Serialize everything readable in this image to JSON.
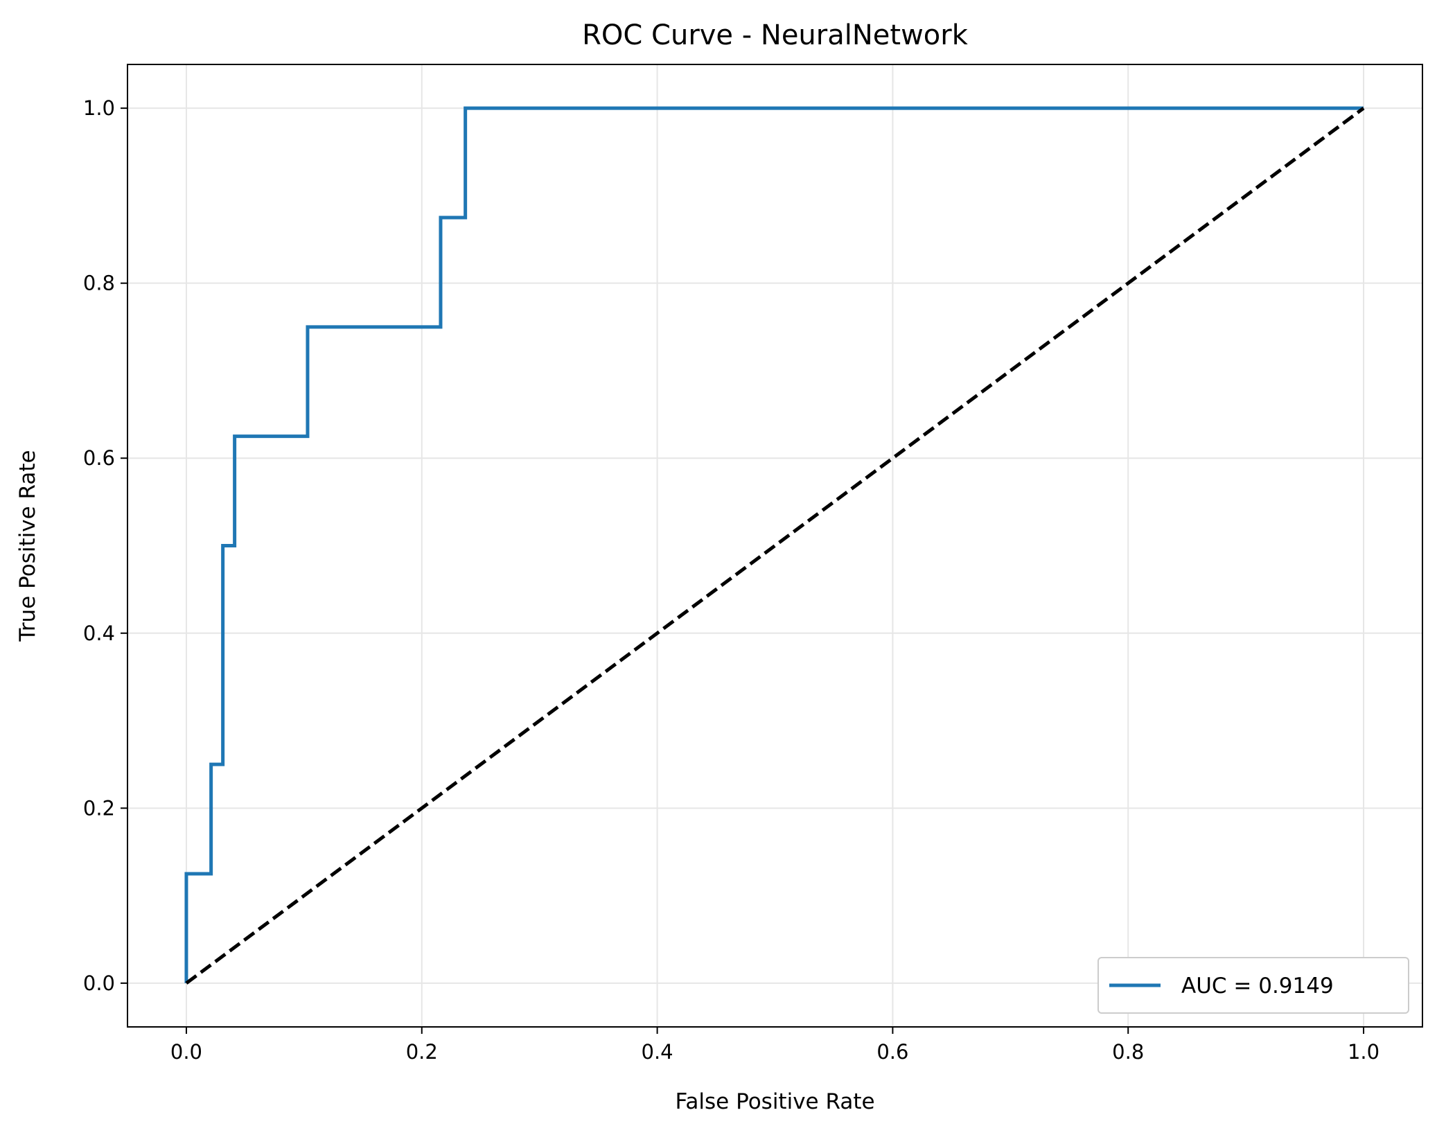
{
  "chart_data": {
    "type": "line",
    "title": "ROC Curve - NeuralNetwork",
    "xlabel": "False Positive Rate",
    "ylabel": "True Positive Rate",
    "xlim": [
      -0.05,
      1.05
    ],
    "ylim": [
      -0.05,
      1.05
    ],
    "grid": true,
    "legend_position": "lower right",
    "x_ticks": [
      "0.0",
      "0.2",
      "0.4",
      "0.6",
      "0.8",
      "1.0"
    ],
    "y_ticks": [
      "0.0",
      "0.2",
      "0.4",
      "0.6",
      "0.8",
      "1.0"
    ],
    "x_tick_values": [
      0.0,
      0.2,
      0.4,
      0.6,
      0.8,
      1.0
    ],
    "y_tick_values": [
      0.0,
      0.2,
      0.4,
      0.6,
      0.8,
      1.0
    ],
    "series": [
      {
        "name": "AUC = 0.9149",
        "style": "solid",
        "color": "#1f77b4",
        "x": [
          0.0,
          0.0,
          0.021,
          0.021,
          0.031,
          0.031,
          0.041,
          0.041,
          0.103,
          0.103,
          0.216,
          0.216,
          0.237,
          0.237,
          1.0
        ],
        "y": [
          0.0,
          0.125,
          0.125,
          0.25,
          0.25,
          0.5,
          0.5,
          0.625,
          0.625,
          0.75,
          0.75,
          0.875,
          0.875,
          1.0,
          1.0
        ]
      },
      {
        "style": "dashed",
        "color": "#000000",
        "x": [
          0.0,
          1.0
        ],
        "y": [
          0.0,
          1.0
        ]
      }
    ]
  }
}
